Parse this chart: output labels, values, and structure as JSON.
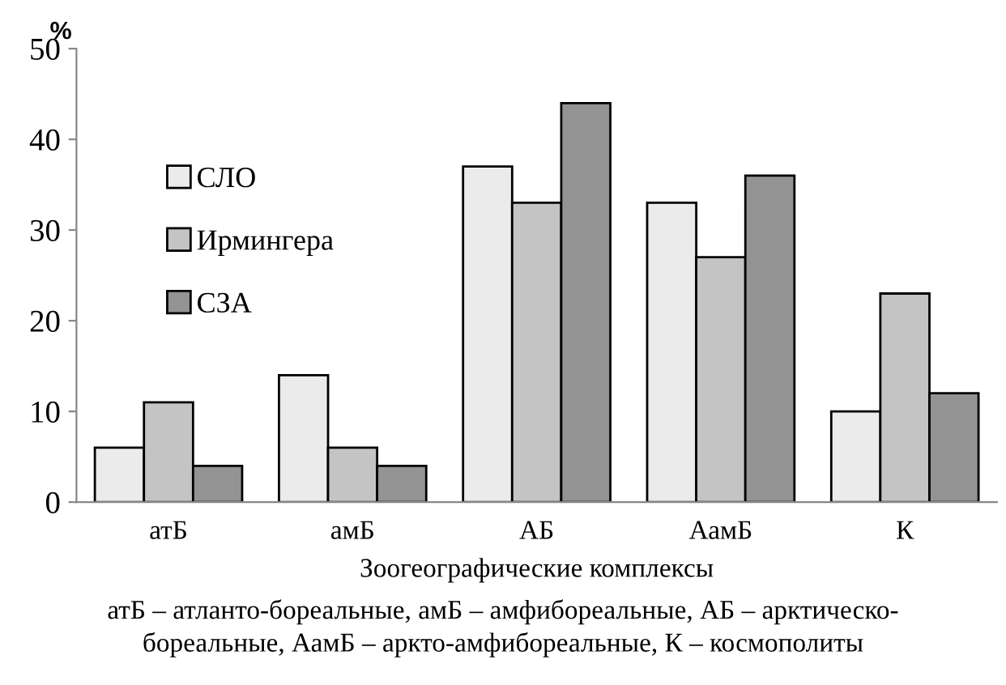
{
  "chart_data": {
    "type": "bar",
    "ylabel": "%",
    "xlabel": "Зоогеографические комплексы",
    "categories": [
      "атБ",
      "амБ",
      "АБ",
      "АамБ",
      "К"
    ],
    "series": [
      {
        "name": "СЛО",
        "color": "#ebebeb",
        "values": [
          6,
          14,
          37,
          33,
          10
        ]
      },
      {
        "name": "Ирмингера",
        "color": "#c4c4c4",
        "values": [
          11,
          6,
          33,
          27,
          23
        ]
      },
      {
        "name": "СЗА",
        "color": "#939393",
        "values": [
          4,
          4,
          44,
          36,
          12
        ]
      }
    ],
    "ylim": [
      0,
      50
    ],
    "yticks": [
      0,
      10,
      20,
      30,
      40,
      50
    ],
    "grid": false,
    "legend": "top left",
    "annotations": [
      "атБ – атланто-бореальные, амБ – амфибореальные, АБ – арктическо-\nбореальные, АамБ – аркто-амфибореальные, К – космополиты"
    ]
  }
}
